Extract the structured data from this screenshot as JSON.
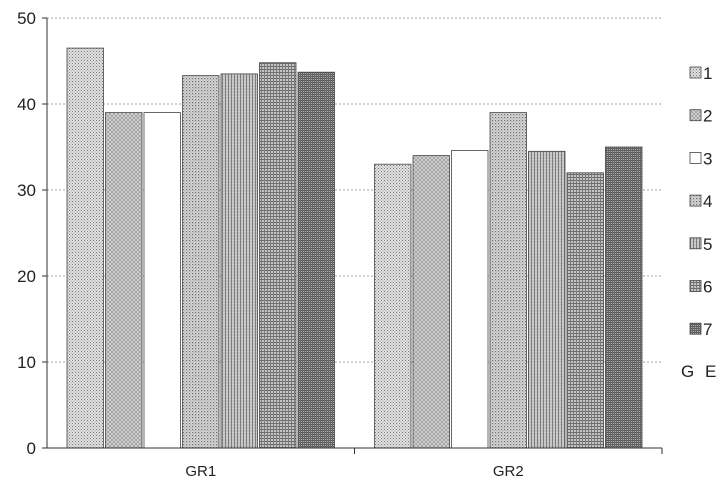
{
  "chart_data": {
    "type": "bar",
    "title": "",
    "xlabel": "",
    "ylabel": "",
    "categories": [
      "GR1",
      "GR2"
    ],
    "ylim": [
      0,
      50
    ],
    "yticks": [
      "0",
      "10",
      "20",
      "30",
      "40",
      "50"
    ],
    "grid": true,
    "legend_position": "right",
    "legend_title": "G E",
    "series": [
      {
        "name": "1",
        "values": [
          46.5,
          33
        ],
        "color": "#c8c8c8",
        "pattern": "fine-dots"
      },
      {
        "name": "2",
        "values": [
          39,
          34
        ],
        "color": "#b4b4b4",
        "pattern": "crosshatch"
      },
      {
        "name": "3",
        "values": [
          39,
          34.6
        ],
        "color": "#ffffff",
        "pattern": "none"
      },
      {
        "name": "4",
        "values": [
          43.3,
          39
        ],
        "color": "#bdbdbd",
        "pattern": "dots"
      },
      {
        "name": "5",
        "values": [
          43.5,
          34.5
        ],
        "color": "#a8a8a8",
        "pattern": "vertical-lines"
      },
      {
        "name": "6",
        "values": [
          44.8,
          32
        ],
        "color": "#9a9a9a",
        "pattern": "grid"
      },
      {
        "name": "7",
        "values": [
          43.7,
          35
        ],
        "color": "#8c8c8c",
        "pattern": "dense-grid"
      }
    ]
  }
}
